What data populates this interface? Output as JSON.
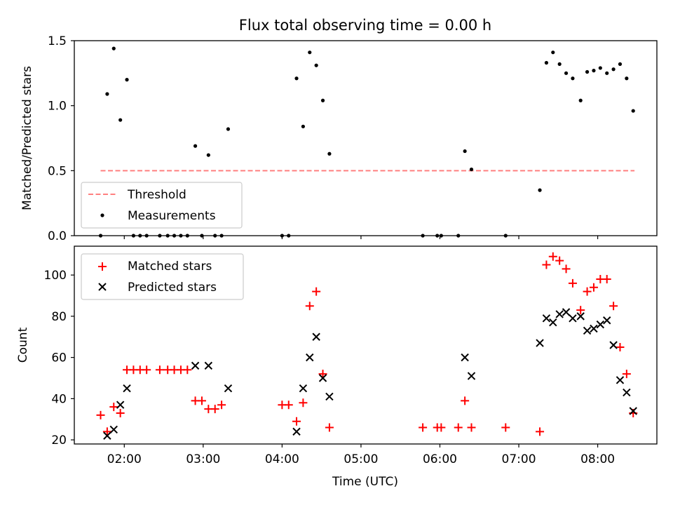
{
  "figure": {
    "title": "Flux total observing time = 0.00 h",
    "xlabel": "Time (UTC)"
  },
  "chart_data": [
    {
      "type": "scatter",
      "ylabel": "Matched/Predicted stars",
      "xlim": [
        "01:22",
        "08:45"
      ],
      "ylim": [
        0,
        1.5
      ],
      "yticks": [
        0.0,
        0.5,
        1.0,
        1.5
      ],
      "ytick_labels": [
        "0.0",
        "0.5",
        "1.0",
        "1.5"
      ],
      "legend": "lower-left",
      "threshold": {
        "name": "Threshold",
        "color": "#ff8080",
        "style": "dashed",
        "value": 0.5,
        "x_start": "01:42",
        "x_end": "08:28"
      },
      "series": [
        {
          "name": "Measurements",
          "color": "#000000",
          "marker": "dot",
          "points": [
            [
              "01:42",
              0.0
            ],
            [
              "01:47",
              1.09
            ],
            [
              "01:52",
              1.44
            ],
            [
              "01:57",
              0.89
            ],
            [
              "02:02",
              1.2
            ],
            [
              "02:07",
              0.0
            ],
            [
              "02:12",
              0.0
            ],
            [
              "02:17",
              0.0
            ],
            [
              "02:27",
              0.0
            ],
            [
              "02:33",
              0.0
            ],
            [
              "02:38",
              0.0
            ],
            [
              "02:43",
              0.0
            ],
            [
              "02:48",
              0.0
            ],
            [
              "02:54",
              0.69
            ],
            [
              "02:59",
              0.0
            ],
            [
              "03:04",
              0.62
            ],
            [
              "03:09",
              0.0
            ],
            [
              "03:14",
              0.0
            ],
            [
              "03:19",
              0.82
            ],
            [
              "04:00",
              0.0
            ],
            [
              "04:05",
              0.0
            ],
            [
              "04:11",
              1.21
            ],
            [
              "04:16",
              0.84
            ],
            [
              "04:21",
              1.41
            ],
            [
              "04:26",
              1.31
            ],
            [
              "04:31",
              1.04
            ],
            [
              "04:36",
              0.63
            ],
            [
              "05:47",
              0.0
            ],
            [
              "05:58",
              0.0
            ],
            [
              "06:01",
              0.0
            ],
            [
              "06:14",
              0.0
            ],
            [
              "06:19",
              0.65
            ],
            [
              "06:24",
              0.51
            ],
            [
              "06:50",
              0.0
            ],
            [
              "07:16",
              0.35
            ],
            [
              "07:21",
              1.33
            ],
            [
              "07:26",
              1.41
            ],
            [
              "07:31",
              1.32
            ],
            [
              "07:36",
              1.25
            ],
            [
              "07:41",
              1.21
            ],
            [
              "07:47",
              1.04
            ],
            [
              "07:52",
              1.26
            ],
            [
              "07:57",
              1.27
            ],
            [
              "08:02",
              1.29
            ],
            [
              "08:07",
              1.25
            ],
            [
              "08:12",
              1.28
            ],
            [
              "08:17",
              1.32
            ],
            [
              "08:22",
              1.21
            ],
            [
              "08:27",
              0.96
            ]
          ]
        }
      ]
    },
    {
      "type": "scatter",
      "ylabel": "Count",
      "xlim": [
        "01:22",
        "08:45"
      ],
      "ylim": [
        18,
        114
      ],
      "yticks": [
        20,
        40,
        60,
        80,
        100
      ],
      "xticks": [
        "02:00",
        "03:00",
        "04:00",
        "05:00",
        "06:00",
        "07:00",
        "08:00"
      ],
      "legend": "upper-left",
      "series": [
        {
          "name": "Matched stars",
          "color": "#ff0000",
          "marker": "plus",
          "points": [
            [
              "01:42",
              32
            ],
            [
              "01:47",
              24
            ],
            [
              "01:52",
              36
            ],
            [
              "01:57",
              33
            ],
            [
              "02:02",
              54
            ],
            [
              "02:07",
              54
            ],
            [
              "02:12",
              54
            ],
            [
              "02:17",
              54
            ],
            [
              "02:27",
              54
            ],
            [
              "02:33",
              54
            ],
            [
              "02:38",
              54
            ],
            [
              "02:43",
              54
            ],
            [
              "02:48",
              54
            ],
            [
              "02:54",
              39
            ],
            [
              "02:59",
              39
            ],
            [
              "03:04",
              35
            ],
            [
              "03:09",
              35
            ],
            [
              "03:14",
              37
            ],
            [
              "04:00",
              37
            ],
            [
              "04:05",
              37
            ],
            [
              "04:11",
              29
            ],
            [
              "04:16",
              38
            ],
            [
              "04:21",
              85
            ],
            [
              "04:26",
              92
            ],
            [
              "04:31",
              52
            ],
            [
              "04:36",
              26
            ],
            [
              "05:47",
              26
            ],
            [
              "05:58",
              26
            ],
            [
              "06:01",
              26
            ],
            [
              "06:14",
              26
            ],
            [
              "06:19",
              39
            ],
            [
              "06:24",
              26
            ],
            [
              "06:50",
              26
            ],
            [
              "07:16",
              24
            ],
            [
              "07:21",
              105
            ],
            [
              "07:26",
              109
            ],
            [
              "07:31",
              107
            ],
            [
              "07:36",
              103
            ],
            [
              "07:41",
              96
            ],
            [
              "07:47",
              83
            ],
            [
              "07:52",
              92
            ],
            [
              "07:57",
              94
            ],
            [
              "08:02",
              98
            ],
            [
              "08:07",
              98
            ],
            [
              "08:12",
              85
            ],
            [
              "08:17",
              65
            ],
            [
              "08:22",
              52
            ],
            [
              "08:27",
              33
            ]
          ]
        },
        {
          "name": "Predicted stars",
          "color": "#000000",
          "marker": "x",
          "points": [
            [
              "01:47",
              22
            ],
            [
              "01:52",
              25
            ],
            [
              "01:57",
              37
            ],
            [
              "02:02",
              45
            ],
            [
              "02:54",
              56
            ],
            [
              "03:04",
              56
            ],
            [
              "03:19",
              45
            ],
            [
              "04:11",
              24
            ],
            [
              "04:16",
              45
            ],
            [
              "04:21",
              60
            ],
            [
              "04:26",
              70
            ],
            [
              "04:31",
              50
            ],
            [
              "04:36",
              41
            ],
            [
              "06:19",
              60
            ],
            [
              "06:24",
              51
            ],
            [
              "07:16",
              67
            ],
            [
              "07:21",
              79
            ],
            [
              "07:26",
              77
            ],
            [
              "07:31",
              81
            ],
            [
              "07:36",
              82
            ],
            [
              "07:41",
              79
            ],
            [
              "07:47",
              80
            ],
            [
              "07:52",
              73
            ],
            [
              "07:57",
              74
            ],
            [
              "08:02",
              76
            ],
            [
              "08:07",
              78
            ],
            [
              "08:12",
              66
            ],
            [
              "08:17",
              49
            ],
            [
              "08:22",
              43
            ],
            [
              "08:27",
              34
            ]
          ]
        }
      ]
    }
  ]
}
